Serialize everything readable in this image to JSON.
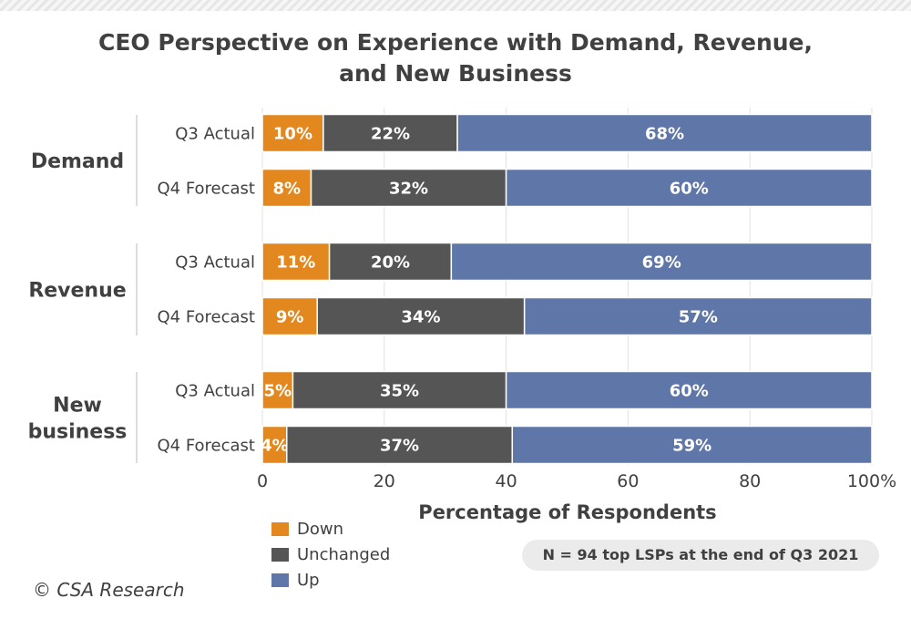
{
  "chart_data": {
    "type": "bar",
    "orientation": "horizontal",
    "stacked": true,
    "title": "CEO Perspective on Experience with Demand, Revenue, and New Business",
    "xlabel": "Percentage of Respondents",
    "xlim": [
      0,
      100
    ],
    "xticks": [
      "0",
      "20",
      "40",
      "60",
      "80",
      "100%"
    ],
    "groups": [
      {
        "label": "Demand",
        "rows": [
          {
            "label": "Q3 Actual",
            "values": [
              10,
              22,
              68
            ]
          },
          {
            "label": "Q4 Forecast",
            "values": [
              8,
              32,
              60
            ]
          }
        ]
      },
      {
        "label": "Revenue",
        "rows": [
          {
            "label": "Q3 Actual",
            "values": [
              11,
              20,
              69
            ]
          },
          {
            "label": "Q4 Forecast",
            "values": [
              9,
              34,
              57
            ]
          }
        ]
      },
      {
        "label": "New business",
        "rows": [
          {
            "label": "Q3 Actual",
            "values": [
              5,
              35,
              60
            ]
          },
          {
            "label": "Q4 Forecast",
            "values": [
              4,
              37,
              59
            ]
          }
        ]
      }
    ],
    "series": [
      {
        "name": "Down",
        "color": "#e3881f"
      },
      {
        "name": "Unchanged",
        "color": "#555555"
      },
      {
        "name": "Up",
        "color": "#5f76a8"
      }
    ],
    "value_suffix": "%",
    "grid": true,
    "legend_position": "bottom-left"
  },
  "note": "N = 94 top LSPs at the end of Q3 2021",
  "copyright": "© CSA Research"
}
